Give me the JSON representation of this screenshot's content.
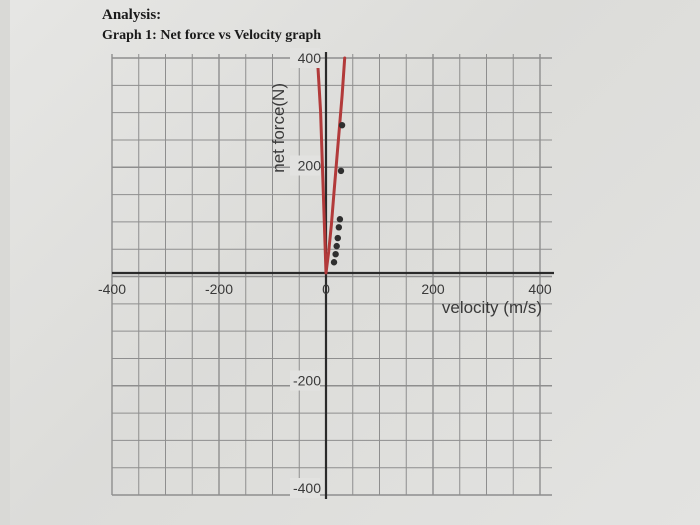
{
  "header": {
    "heading": "Analysis:",
    "subheading": "Graph 1: Net force vs Velocity graph"
  },
  "chart_data": {
    "type": "scatter",
    "title": "Graph 1: Net force vs Velocity graph",
    "xlabel": "velocity (m/s)",
    "ylabel": "net force(N)",
    "xlim": [
      -400,
      400
    ],
    "ylim": [
      -400,
      400
    ],
    "x_ticks": [
      -400,
      -200,
      0,
      200,
      400
    ],
    "y_ticks": [
      400,
      200,
      -200,
      -400
    ],
    "grid": true,
    "series": [
      {
        "marker": "point",
        "x": [
          15,
          18,
          20,
          22,
          24,
          26,
          28,
          30
        ],
        "y": [
          20,
          35,
          50,
          65,
          85,
          100,
          190,
          275
        ],
        "color": "#2f2f2f"
      },
      {
        "marker": "line",
        "x": [
          -16,
          -10,
          -5,
          0,
          5,
          10,
          15,
          20,
          25,
          30,
          35
        ],
        "y": [
          400,
          300,
          150,
          0,
          40,
          90,
          150,
          210,
          270,
          330,
          400
        ],
        "color": "#b23a3a"
      }
    ],
    "colors": {
      "grid": "#8e8e8e",
      "axis": "#2a2a2a"
    }
  }
}
